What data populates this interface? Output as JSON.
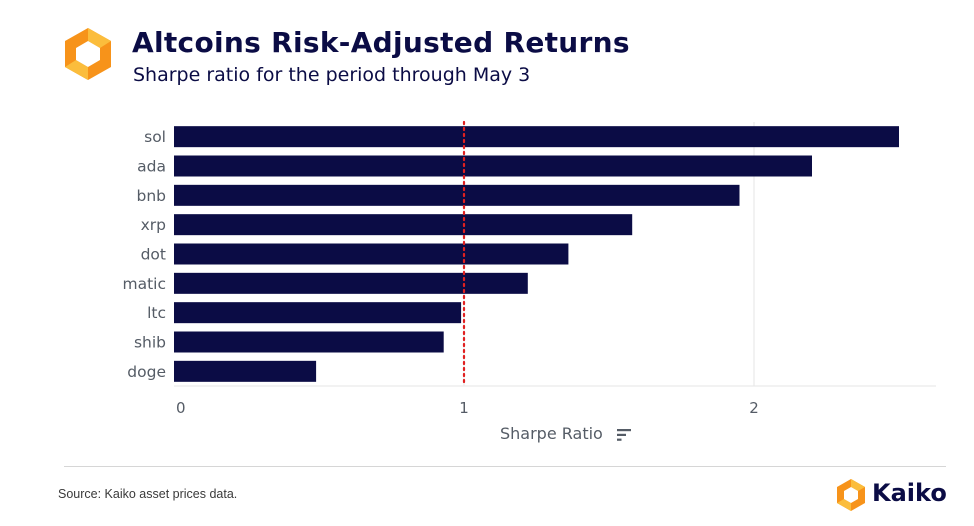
{
  "header": {
    "title": "Altcoins Risk-Adjusted Returns",
    "subtitle": "Sharpe ratio for the period through May 3"
  },
  "footer": {
    "source": "Source: Kaiko asset prices data.",
    "brand": "Kaiko"
  },
  "icons": {
    "logo": "kaiko-hexagon-logo-icon",
    "sort": "sort-icon"
  },
  "colors": {
    "bar": "#0b0c45",
    "reference_line": "#e02020",
    "logo_orange": "#f7931a",
    "logo_light": "#fbbd3c",
    "title": "#0b0c45"
  },
  "chart_data": {
    "type": "bar",
    "orientation": "horizontal",
    "categories": [
      "sol",
      "ada",
      "bnb",
      "xrp",
      "dot",
      "matic",
      "ltc",
      "shib",
      "doge"
    ],
    "values": [
      2.5,
      2.2,
      1.95,
      1.58,
      1.36,
      1.22,
      0.99,
      0.93,
      0.49
    ],
    "xlabel": "Sharpe Ratio",
    "ylabel": "",
    "xlim": [
      0,
      2.6
    ],
    "xticks": [
      "0",
      "1",
      "2"
    ],
    "reference_line": {
      "x": 1,
      "style": "dotted"
    },
    "grid": "vertical",
    "legend": "none"
  }
}
